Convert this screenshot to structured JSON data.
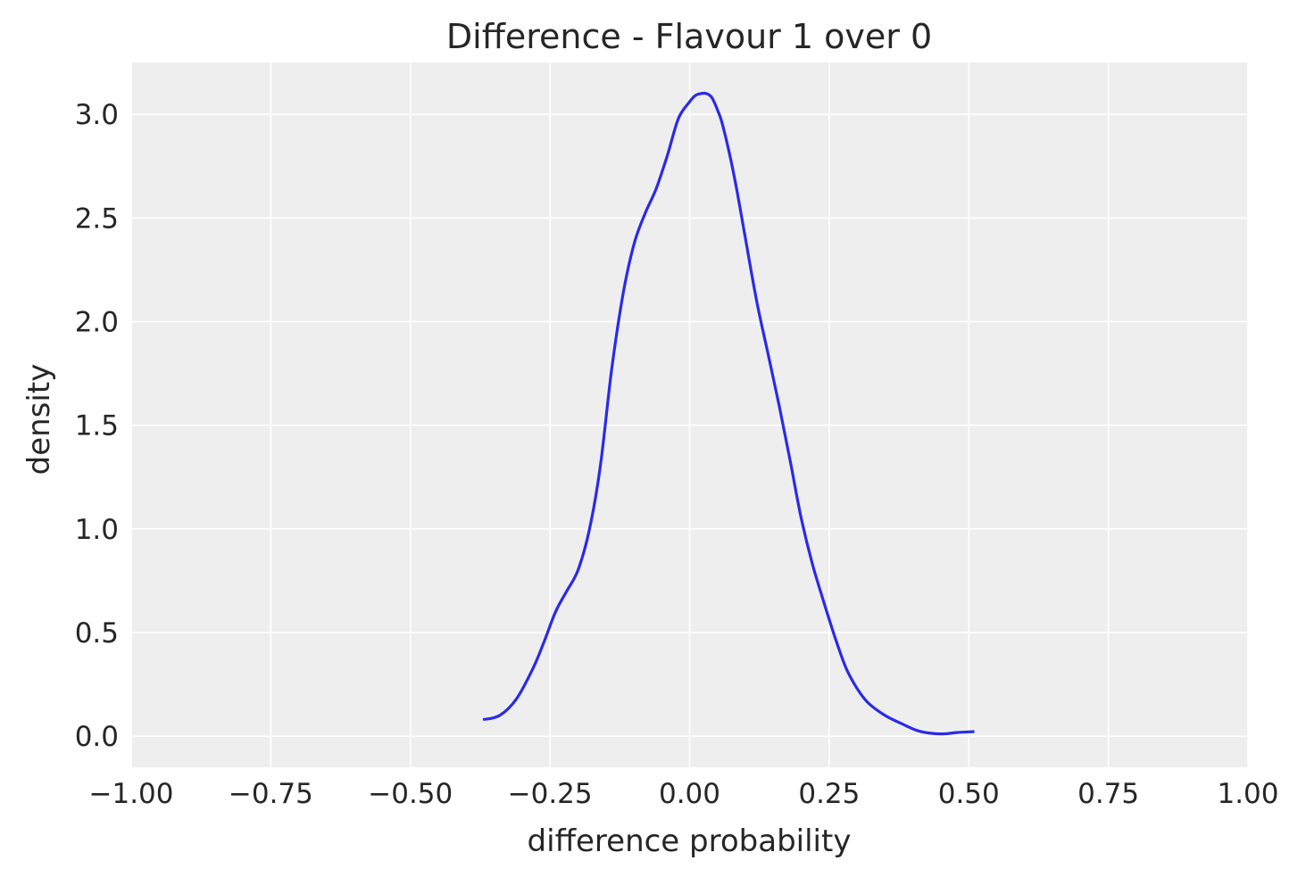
{
  "chart_data": {
    "type": "line",
    "title": "Difference - Flavour 1 over 0",
    "xlabel": "difference probability",
    "ylabel": "density",
    "xlim": [
      -1.0,
      1.0
    ],
    "ylim": [
      -0.15,
      3.25
    ],
    "grid": true,
    "legend": "none",
    "colors": {
      "background": "#eeeeee",
      "grid": "#ffffff",
      "line": "#2a2aeb",
      "text": "#262626"
    },
    "x_ticks": [
      -1.0,
      -0.75,
      -0.5,
      -0.25,
      0.0,
      0.25,
      0.5,
      0.75,
      1.0
    ],
    "x_tick_labels": [
      "−1.00",
      "−0.75",
      "−0.50",
      "−0.25",
      "0.00",
      "0.25",
      "0.50",
      "0.75",
      "1.00"
    ],
    "y_ticks": [
      0.0,
      0.5,
      1.0,
      1.5,
      2.0,
      2.5,
      3.0
    ],
    "y_tick_labels": [
      "0.0",
      "0.5",
      "1.0",
      "1.5",
      "2.0",
      "2.5",
      "3.0"
    ],
    "series": [
      {
        "x": [
          -0.37,
          -0.34,
          -0.31,
          -0.28,
          -0.26,
          -0.24,
          -0.22,
          -0.2,
          -0.18,
          -0.16,
          -0.14,
          -0.12,
          -0.1,
          -0.08,
          -0.06,
          -0.04,
          -0.02,
          0.0,
          0.01,
          0.02,
          0.03,
          0.04,
          0.05,
          0.06,
          0.08,
          0.1,
          0.12,
          0.14,
          0.16,
          0.18,
          0.2,
          0.22,
          0.24,
          0.26,
          0.28,
          0.3,
          0.32,
          0.35,
          0.38,
          0.41,
          0.44,
          0.46,
          0.48,
          0.51
        ],
        "y": [
          0.08,
          0.1,
          0.18,
          0.33,
          0.46,
          0.6,
          0.7,
          0.8,
          0.99,
          1.3,
          1.76,
          2.12,
          2.37,
          2.52,
          2.64,
          2.8,
          2.98,
          3.06,
          3.09,
          3.1,
          3.1,
          3.08,
          3.02,
          2.94,
          2.7,
          2.4,
          2.1,
          1.85,
          1.6,
          1.33,
          1.05,
          0.83,
          0.65,
          0.48,
          0.33,
          0.23,
          0.16,
          0.1,
          0.06,
          0.025,
          0.012,
          0.012,
          0.018,
          0.022
        ]
      }
    ]
  }
}
